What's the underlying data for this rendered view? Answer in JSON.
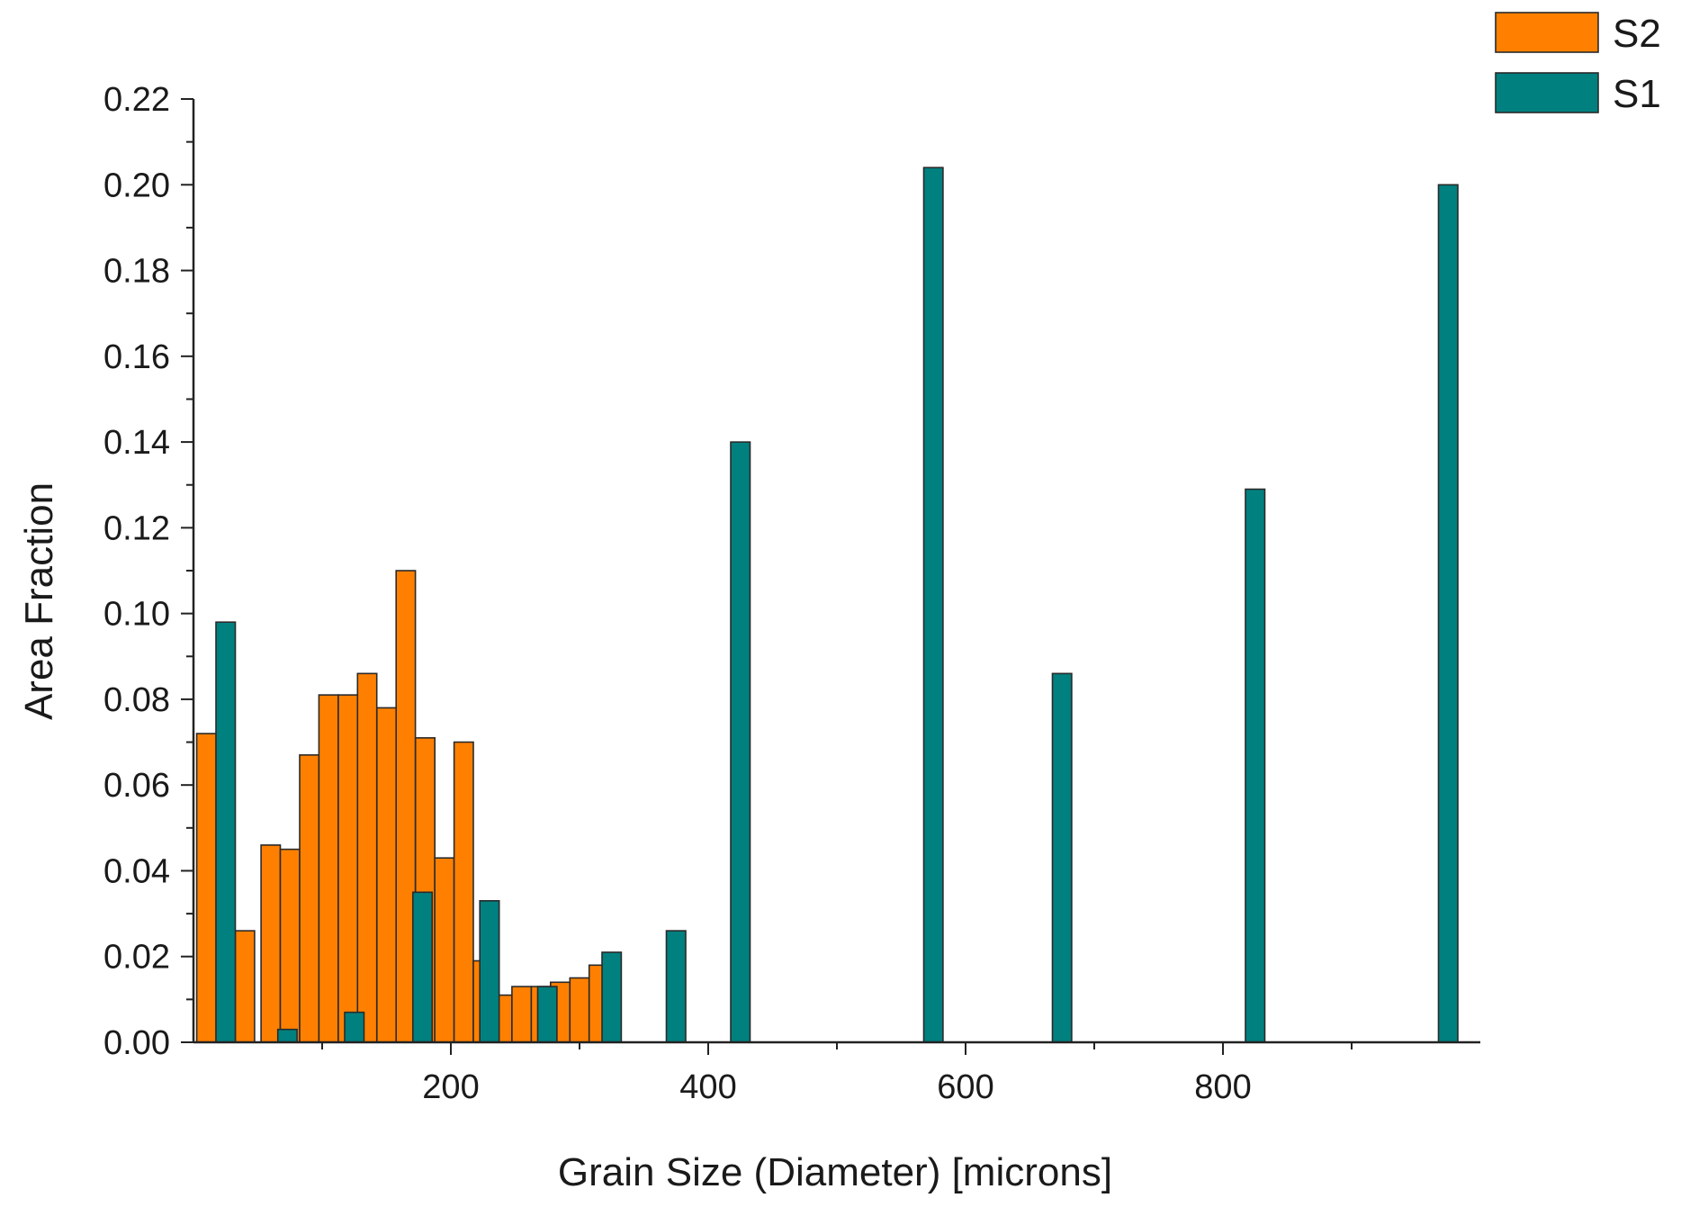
{
  "chart_data": {
    "type": "bar",
    "title": "",
    "xlabel": "Grain Size (Diameter) [microns]",
    "ylabel": "Area Fraction",
    "xlim": [
      0,
      1000
    ],
    "ylim": [
      0,
      0.22
    ],
    "x_ticks": [
      200,
      400,
      600,
      800
    ],
    "y_ticks": [
      0.0,
      0.02,
      0.04,
      0.06,
      0.08,
      0.1,
      0.12,
      0.14,
      0.16,
      0.18,
      0.2,
      0.22
    ],
    "y_tick_decimals": 2,
    "bar_width": 15,
    "legend_position": "top-right",
    "grid": false,
    "series": [
      {
        "name": "S2",
        "color": "#ff8000",
        "x": [
          10,
          40,
          60,
          75,
          90,
          105,
          120,
          135,
          150,
          165,
          180,
          195,
          210,
          225,
          240,
          255,
          270,
          285,
          300,
          315
        ],
        "values": [
          0.072,
          0.026,
          0.046,
          0.045,
          0.067,
          0.081,
          0.081,
          0.086,
          0.078,
          0.11,
          0.071,
          0.043,
          0.07,
          0.019,
          0.011,
          0.013,
          0.013,
          0.014,
          0.015,
          0.018
        ]
      },
      {
        "name": "S1",
        "color": "#00807f",
        "x": [
          25,
          73,
          125,
          178,
          230,
          275,
          325,
          375,
          425,
          575,
          675,
          825,
          975
        ],
        "values": [
          0.098,
          0.003,
          0.007,
          0.035,
          0.033,
          0.013,
          0.021,
          0.026,
          0.14,
          0.204,
          0.086,
          0.129,
          0.2
        ]
      }
    ]
  }
}
